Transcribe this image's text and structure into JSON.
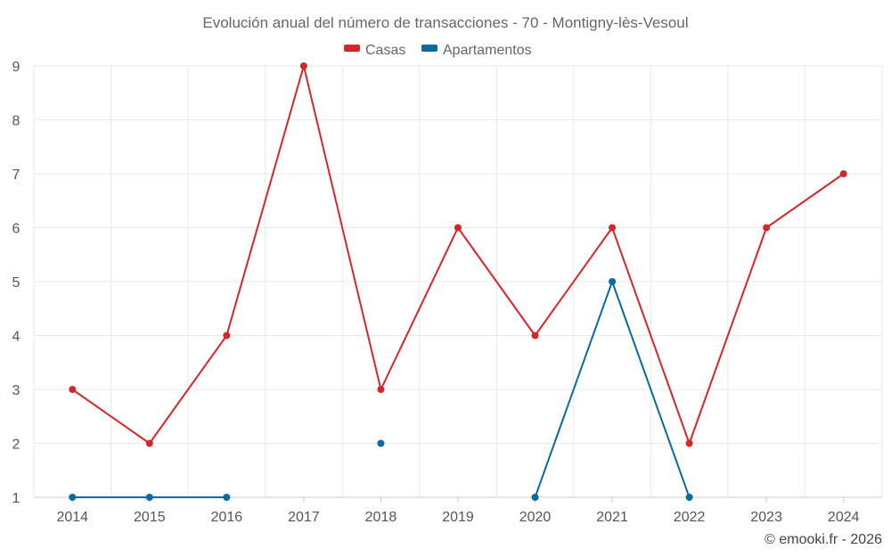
{
  "chart_data": {
    "type": "line",
    "title": "Evolución anual del número de transacciones - 70 - Montigny-lès-Vesoul",
    "categories": [
      "2014",
      "2015",
      "2016",
      "2017",
      "2018",
      "2019",
      "2020",
      "2021",
      "2022",
      "2023",
      "2024"
    ],
    "series": [
      {
        "name": "Casas",
        "color": "#d62728",
        "values": [
          3,
          2,
          4,
          9,
          3,
          6,
          4,
          6,
          2,
          6,
          7
        ]
      },
      {
        "name": "Apartamentos",
        "color": "#0a6aa1",
        "values": [
          1,
          1,
          1,
          null,
          2,
          null,
          1,
          5,
          1,
          null,
          null
        ]
      }
    ],
    "ylim": [
      1,
      9
    ],
    "yticks": [
      "1",
      "2",
      "3",
      "4",
      "5",
      "6",
      "7",
      "8",
      "9"
    ],
    "grid": true,
    "legend": "top-center",
    "xlabel": "",
    "ylabel": ""
  },
  "credit": "© emooki.fr - 2026"
}
